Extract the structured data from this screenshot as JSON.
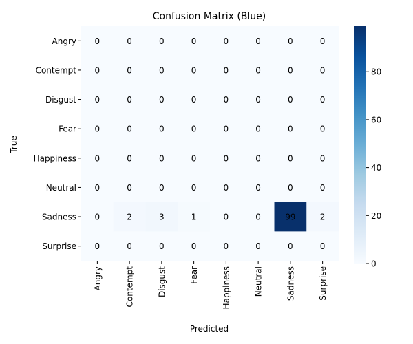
{
  "chart_data": {
    "type": "heatmap",
    "title": "Confusion Matrix (Blue)",
    "xlabel": "Predicted",
    "ylabel": "True",
    "x_categories": [
      "Angry",
      "Contempt",
      "Disgust",
      "Fear",
      "Happiness",
      "Neutral",
      "Sadness",
      "Surprise"
    ],
    "y_categories": [
      "Angry",
      "Contempt",
      "Disgust",
      "Fear",
      "Happiness",
      "Neutral",
      "Sadness",
      "Surprise"
    ],
    "values": [
      [
        0,
        0,
        0,
        0,
        0,
        0,
        0,
        0
      ],
      [
        0,
        0,
        0,
        0,
        0,
        0,
        0,
        0
      ],
      [
        0,
        0,
        0,
        0,
        0,
        0,
        0,
        0
      ],
      [
        0,
        0,
        0,
        0,
        0,
        0,
        0,
        0
      ],
      [
        0,
        0,
        0,
        0,
        0,
        0,
        0,
        0
      ],
      [
        0,
        0,
        0,
        0,
        0,
        0,
        0,
        0
      ],
      [
        0,
        2,
        3,
        1,
        0,
        0,
        99,
        2
      ],
      [
        0,
        0,
        0,
        0,
        0,
        0,
        0,
        0
      ]
    ],
    "colormap": "Blues",
    "colorbar": {
      "range": [
        0,
        99
      ],
      "ticks": [
        0,
        20,
        40,
        60,
        80
      ],
      "tick_labels": [
        "0",
        "20",
        "40",
        "60",
        "80"
      ]
    },
    "annotations": true,
    "grid": false
  }
}
